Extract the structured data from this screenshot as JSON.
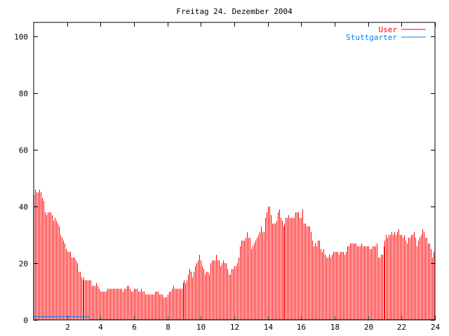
{
  "chart_data": {
    "type": "bar",
    "style": "impulses",
    "title": "Freitag 24. Dezember 2004",
    "xlabel": "",
    "ylabel": "",
    "xlim": [
      0,
      24
    ],
    "ylim": [
      0,
      105
    ],
    "x_ticks": [
      2,
      4,
      6,
      8,
      10,
      12,
      14,
      16,
      18,
      20,
      22,
      24
    ],
    "x_tick_labels": [
      "2",
      "4",
      "6",
      "8",
      "10",
      "12",
      "14",
      "16",
      "18",
      "20",
      "22",
      "24"
    ],
    "y_ticks": [
      0,
      20,
      40,
      60,
      80,
      100
    ],
    "y_tick_labels": [
      "0",
      "20",
      "40",
      "60",
      "80",
      "100"
    ],
    "grid": false,
    "legend_position": "top-right",
    "x_step_hours": 0.0833333,
    "series": [
      {
        "name": "User",
        "color": "#ff0000",
        "values": [
          44,
          46,
          45,
          45,
          46,
          45,
          43,
          42,
          38,
          37,
          38,
          38,
          38,
          37,
          35,
          36,
          35,
          34,
          33,
          30,
          29,
          28,
          27,
          25,
          24,
          24,
          24,
          22,
          22,
          22,
          21,
          20,
          17,
          17,
          15,
          14,
          15,
          14,
          14,
          14,
          14,
          14,
          12,
          12,
          12,
          13,
          12,
          11,
          10,
          10,
          10,
          10,
          10,
          11,
          11,
          11,
          11,
          11,
          11,
          11,
          11,
          11,
          11,
          11,
          10,
          11,
          11,
          12,
          12,
          11,
          10,
          10,
          11,
          11,
          11,
          10,
          10,
          11,
          10,
          10,
          9,
          9,
          9,
          9,
          9,
          9,
          9,
          10,
          10,
          10,
          9,
          9,
          9,
          8,
          8,
          8,
          9,
          10,
          10,
          11,
          12,
          11,
          11,
          11,
          11,
          11,
          11,
          13,
          14,
          13,
          14,
          16,
          18,
          17,
          15,
          17,
          19,
          20,
          21,
          23,
          21,
          19,
          18,
          16,
          17,
          17,
          16,
          20,
          21,
          21,
          21,
          23,
          21,
          21,
          19,
          20,
          21,
          20,
          20,
          18,
          16,
          16,
          18,
          18,
          19,
          19,
          20,
          22,
          26,
          28,
          28,
          28,
          29,
          31,
          29,
          29,
          25,
          26,
          27,
          28,
          29,
          30,
          31,
          33,
          31,
          31,
          36,
          38,
          40,
          40,
          37,
          34,
          34,
          34,
          35,
          38,
          39,
          36,
          35,
          33,
          34,
          36,
          36,
          37,
          36,
          36,
          36,
          36,
          38,
          38,
          38,
          36,
          36,
          39,
          34,
          34,
          33,
          33,
          33,
          31,
          28,
          26,
          27,
          26,
          28,
          28,
          25,
          24,
          25,
          23,
          22,
          22,
          23,
          22,
          23,
          24,
          24,
          24,
          24,
          23,
          24,
          24,
          24,
          23,
          24,
          26,
          26,
          27,
          27,
          27,
          27,
          27,
          26,
          26,
          26,
          27,
          26,
          26,
          26,
          26,
          26,
          25,
          25,
          26,
          26,
          26,
          27,
          22,
          22,
          23,
          23,
          26,
          28,
          30,
          29,
          30,
          30,
          31,
          30,
          31,
          30,
          31,
          32,
          30,
          30,
          29,
          30,
          28,
          27,
          29,
          29,
          30,
          30,
          31,
          29,
          26,
          28,
          29,
          30,
          32,
          31,
          29,
          29,
          27,
          27,
          25,
          22,
          24
        ]
      },
      {
        "name": "Stuttgarter",
        "color": "#0080ff",
        "points": [
          [
            0,
            1
          ],
          [
            3.33,
            1
          ],
          [
            3.33,
            0
          ],
          [
            24,
            0
          ]
        ]
      }
    ]
  }
}
